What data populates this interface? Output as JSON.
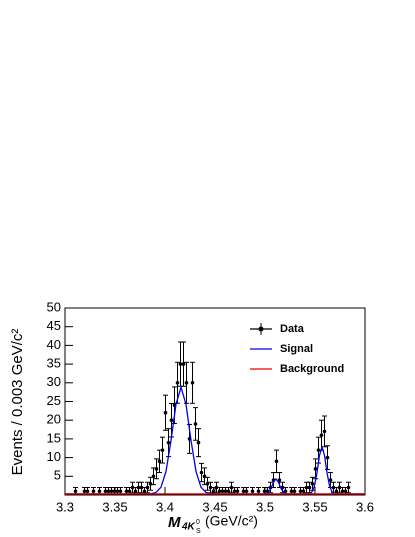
{
  "chart_data": {
    "type": "scatter",
    "xlabel": {
      "symbol": "M",
      "subscript": "4K",
      "sub_superscript": "0",
      "sub_subscript": "S",
      "unit": "(GeV/c²)"
    },
    "ylabel": "Events / 0.003 GeV/c²",
    "xlim": [
      3.3,
      3.6
    ],
    "xticks": [
      3.3,
      3.35,
      3.4,
      3.45,
      3.5,
      3.55,
      3.6
    ],
    "ylim": [
      0,
      50
    ],
    "yticks": [
      5,
      10,
      15,
      20,
      25,
      30,
      35,
      40,
      45,
      50
    ],
    "legend": "upper right",
    "series": [
      {
        "name": "Data",
        "color": "#000000",
        "x": [
          3.3105,
          3.3195,
          3.3225,
          3.3285,
          3.3345,
          3.3405,
          3.3435,
          3.3465,
          3.3495,
          3.3525,
          3.3555,
          3.3615,
          3.3645,
          3.3675,
          3.3705,
          3.3735,
          3.3765,
          3.3795,
          3.3825,
          3.3855,
          3.3885,
          3.3915,
          3.3945,
          3.3975,
          3.4005,
          3.4035,
          3.4065,
          3.4095,
          3.4125,
          3.4155,
          3.4185,
          3.4215,
          3.4245,
          3.4275,
          3.4305,
          3.4335,
          3.4365,
          3.4395,
          3.4425,
          3.4455,
          3.4485,
          3.4515,
          3.4545,
          3.4575,
          3.4605,
          3.4635,
          3.4665,
          3.4695,
          3.4725,
          3.4785,
          3.4815,
          3.4875,
          3.4935,
          3.4995,
          3.5025,
          3.5055,
          3.5085,
          3.5115,
          3.5145,
          3.5175,
          3.5205,
          3.5265,
          3.5295,
          3.5355,
          3.5385,
          3.5415,
          3.5445,
          3.5475,
          3.5505,
          3.5535,
          3.5565,
          3.5595,
          3.5625,
          3.5655,
          3.5685,
          3.5715,
          3.5745,
          3.5775,
          3.5805,
          3.5835
        ],
        "values": [
          1,
          1,
          1,
          1,
          1,
          1,
          1,
          1,
          1,
          1,
          1,
          1,
          1,
          2,
          1,
          2,
          2,
          1,
          2,
          3,
          5,
          7,
          9,
          12,
          22,
          14,
          20,
          24,
          30,
          35,
          35,
          30,
          15,
          30,
          19,
          14,
          6,
          5,
          3,
          2,
          1,
          2,
          1,
          1,
          1,
          1,
          2,
          1,
          1,
          1,
          1,
          1,
          1,
          1,
          1,
          2,
          4,
          9,
          4,
          2,
          1,
          1,
          1,
          1,
          1,
          2,
          2,
          3,
          7,
          12,
          16,
          17,
          10,
          4,
          2,
          1,
          2,
          1,
          1,
          2
        ],
        "errors": [
          1,
          1,
          1,
          1,
          1,
          1,
          1,
          1,
          1,
          1,
          1,
          1,
          1,
          1.41,
          1,
          1.41,
          1.41,
          1,
          1.41,
          1.73,
          2.24,
          2.65,
          3,
          3.46,
          4.69,
          3.74,
          4.47,
          4.9,
          5.48,
          5.92,
          5.92,
          5.48,
          3.87,
          5.48,
          4.36,
          3.74,
          2.45,
          2.24,
          1.73,
          1.41,
          1,
          1.41,
          1,
          1,
          1,
          1,
          1.41,
          1,
          1,
          1,
          1,
          1,
          1,
          1,
          1,
          1.41,
          2,
          3,
          2,
          1.41,
          1,
          1,
          1,
          1,
          1,
          1.41,
          1.41,
          1.73,
          2.65,
          3.46,
          4,
          4.12,
          3.16,
          2,
          1.41,
          1,
          1.41,
          1,
          1,
          1.41
        ]
      },
      {
        "name": "Signal",
        "color": "#0000ee",
        "x": [
          3.3,
          3.38,
          3.386,
          3.391,
          3.396,
          3.401,
          3.406,
          3.411,
          3.416,
          3.421,
          3.426,
          3.431,
          3.436,
          3.441,
          3.446,
          3.45,
          3.5,
          3.501,
          3.5035,
          3.506,
          3.5085,
          3.511,
          3.5135,
          3.516,
          3.5185,
          3.521,
          3.525,
          3.54,
          3.5445,
          3.547,
          3.5495,
          3.552,
          3.5545,
          3.557,
          3.5595,
          3.562,
          3.5645,
          3.567,
          3.5695,
          3.575,
          3.6
        ],
        "values": [
          0.3,
          0.3,
          0.36,
          0.68,
          2.09,
          6.3,
          14.6,
          24.27,
          28.8,
          24.27,
          14.6,
          6.3,
          2.09,
          0.68,
          0.36,
          0.3,
          0.3,
          0.37,
          0.7,
          1.74,
          3.4,
          4.3,
          3.4,
          1.74,
          0.7,
          0.37,
          0.3,
          0.3,
          0.4,
          0.85,
          2.45,
          6.02,
          10.6,
          12.8,
          10.6,
          6.02,
          2.45,
          0.85,
          0.4,
          0.3,
          0.3
        ]
      },
      {
        "name": "Background",
        "color": "#ee0000",
        "x": [
          3.3,
          3.6
        ],
        "values": [
          0.3,
          0.3
        ]
      }
    ]
  }
}
